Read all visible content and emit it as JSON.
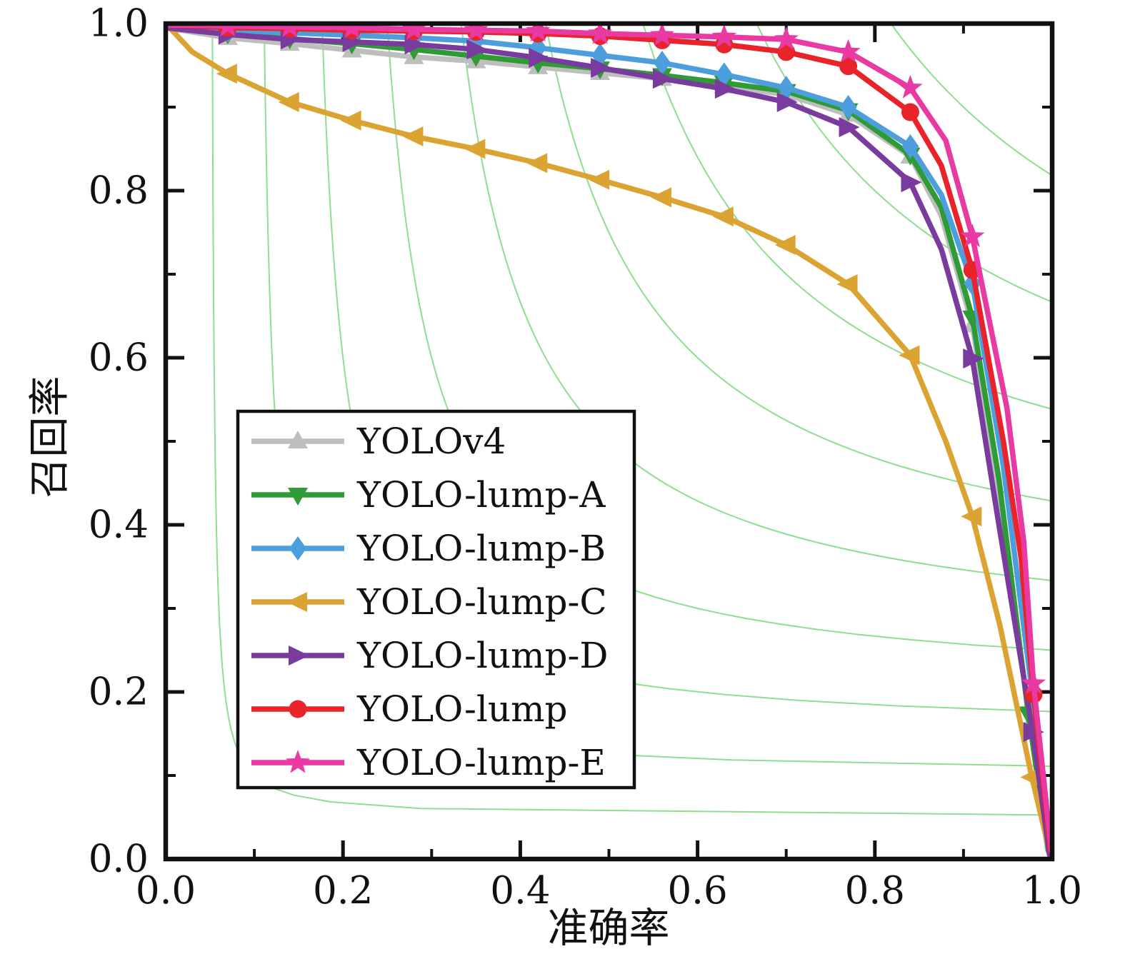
{
  "figure": {
    "background": "#ffffff",
    "axis_color": "#111111"
  },
  "chart_data": {
    "type": "line",
    "title": "",
    "xlabel": "准确率",
    "ylabel": "召回率",
    "xlim": [
      0,
      1
    ],
    "ylim": [
      0,
      1
    ],
    "grid": false,
    "x_ticks": {
      "values": [
        0,
        0.2,
        0.4,
        0.6,
        0.8,
        1.0
      ],
      "labels": [
        "0.0",
        "0.2",
        "0.4",
        "0.6",
        "0.8",
        "1.0"
      ],
      "minor": [
        0.1,
        0.3,
        0.5,
        0.7,
        0.9
      ]
    },
    "y_ticks": {
      "values": [
        0,
        0.2,
        0.4,
        0.6,
        0.8,
        1.0
      ],
      "labels": [
        "0.0",
        "0.2",
        "0.4",
        "0.6",
        "0.8",
        "1.0"
      ],
      "minor": [
        0.1,
        0.3,
        0.5,
        0.7,
        0.9
      ]
    },
    "f1_contours": {
      "levels": [
        0.1,
        0.2,
        0.3,
        0.4,
        0.5,
        0.6,
        0.7,
        0.8,
        0.9
      ],
      "color": "#8fdd8f"
    },
    "legend": {
      "position": "center-left",
      "border_color": "#111111",
      "background": "#ffffff"
    },
    "series": [
      {
        "name": "YOLOv4",
        "color": "#bebebe",
        "marker": "triangle-up",
        "points": [
          [
            0,
            0.995,
            0
          ],
          [
            0.035,
            0.989,
            0
          ],
          [
            0.07,
            0.983,
            1
          ],
          [
            0.14,
            0.976,
            1
          ],
          [
            0.21,
            0.968,
            1
          ],
          [
            0.28,
            0.96,
            1
          ],
          [
            0.35,
            0.955,
            1
          ],
          [
            0.42,
            0.948,
            1
          ],
          [
            0.49,
            0.941,
            1
          ],
          [
            0.56,
            0.934,
            1
          ],
          [
            0.63,
            0.925,
            1
          ],
          [
            0.7,
            0.915,
            1
          ],
          [
            0.77,
            0.891,
            1
          ],
          [
            0.84,
            0.841,
            1
          ],
          [
            0.875,
            0.77,
            0
          ],
          [
            0.91,
            0.639,
            1
          ],
          [
            0.94,
            0.44,
            0
          ],
          [
            0.975,
            0.162,
            1
          ],
          [
            0.995,
            0.01,
            0
          ]
        ]
      },
      {
        "name": "YOLO-lump-A",
        "color": "#2e9b37",
        "marker": "triangle-down",
        "points": [
          [
            0,
            0.996,
            0
          ],
          [
            0.035,
            0.992,
            0
          ],
          [
            0.07,
            0.988,
            1
          ],
          [
            0.14,
            0.982,
            1
          ],
          [
            0.21,
            0.976,
            1
          ],
          [
            0.28,
            0.969,
            1
          ],
          [
            0.35,
            0.961,
            1
          ],
          [
            0.42,
            0.953,
            1
          ],
          [
            0.49,
            0.946,
            1
          ],
          [
            0.56,
            0.938,
            1
          ],
          [
            0.63,
            0.929,
            1
          ],
          [
            0.7,
            0.919,
            1
          ],
          [
            0.77,
            0.896,
            1
          ],
          [
            0.84,
            0.843,
            1
          ],
          [
            0.875,
            0.78,
            0
          ],
          [
            0.91,
            0.648,
            1
          ],
          [
            0.94,
            0.455,
            0
          ],
          [
            0.973,
            0.174,
            1
          ],
          [
            0.996,
            0.01,
            0
          ]
        ]
      },
      {
        "name": "YOLO-lump-B",
        "color": "#4c9edd",
        "marker": "diamond",
        "points": [
          [
            0,
            0.997,
            0
          ],
          [
            0.035,
            0.995,
            0
          ],
          [
            0.07,
            0.992,
            1
          ],
          [
            0.14,
            0.989,
            1
          ],
          [
            0.21,
            0.986,
            1
          ],
          [
            0.28,
            0.983,
            1
          ],
          [
            0.35,
            0.979,
            1
          ],
          [
            0.42,
            0.971,
            1
          ],
          [
            0.49,
            0.962,
            1
          ],
          [
            0.56,
            0.953,
            1
          ],
          [
            0.63,
            0.939,
            1
          ],
          [
            0.7,
            0.923,
            1
          ],
          [
            0.77,
            0.9,
            1
          ],
          [
            0.84,
            0.853,
            1
          ],
          [
            0.875,
            0.795,
            0
          ],
          [
            0.91,
            0.689,
            1
          ],
          [
            0.945,
            0.47,
            0
          ],
          [
            0.978,
            0.195,
            1
          ],
          [
            0.998,
            0.01,
            0
          ]
        ]
      },
      {
        "name": "YOLO-lump-C",
        "color": "#dba432",
        "marker": "triangle-left",
        "points": [
          [
            0,
            1.0,
            0
          ],
          [
            0.03,
            0.966,
            0
          ],
          [
            0.07,
            0.94,
            1
          ],
          [
            0.14,
            0.906,
            1
          ],
          [
            0.21,
            0.884,
            1
          ],
          [
            0.28,
            0.865,
            1
          ],
          [
            0.35,
            0.85,
            1
          ],
          [
            0.42,
            0.833,
            1
          ],
          [
            0.49,
            0.813,
            1
          ],
          [
            0.56,
            0.792,
            1
          ],
          [
            0.63,
            0.769,
            1
          ],
          [
            0.7,
            0.735,
            1
          ],
          [
            0.77,
            0.688,
            1
          ],
          [
            0.84,
            0.603,
            1
          ],
          [
            0.88,
            0.5,
            0
          ],
          [
            0.91,
            0.41,
            1
          ],
          [
            0.941,
            0.28,
            0
          ],
          [
            0.977,
            0.098,
            1
          ],
          [
            0.998,
            0.005,
            0
          ]
        ]
      },
      {
        "name": "YOLO-lump-D",
        "color": "#7a3b9e",
        "marker": "triangle-right",
        "points": [
          [
            0,
            0.995,
            0
          ],
          [
            0.035,
            0.991,
            0
          ],
          [
            0.07,
            0.987,
            1
          ],
          [
            0.14,
            0.981,
            1
          ],
          [
            0.21,
            0.978,
            1
          ],
          [
            0.28,
            0.975,
            1
          ],
          [
            0.35,
            0.969,
            1
          ],
          [
            0.42,
            0.959,
            1
          ],
          [
            0.49,
            0.947,
            1
          ],
          [
            0.56,
            0.934,
            1
          ],
          [
            0.63,
            0.922,
            1
          ],
          [
            0.7,
            0.906,
            1
          ],
          [
            0.77,
            0.876,
            1
          ],
          [
            0.84,
            0.81,
            1
          ],
          [
            0.875,
            0.73,
            0
          ],
          [
            0.91,
            0.599,
            1
          ],
          [
            0.94,
            0.4,
            0
          ],
          [
            0.978,
            0.152,
            1
          ],
          [
            0.997,
            0.005,
            0
          ]
        ]
      },
      {
        "name": "YOLO-lump",
        "color": "#e82329",
        "marker": "circle",
        "points": [
          [
            0,
            0.998,
            0
          ],
          [
            0.035,
            0.997,
            0
          ],
          [
            0.07,
            0.995,
            1
          ],
          [
            0.14,
            0.994,
            1
          ],
          [
            0.21,
            0.992,
            1
          ],
          [
            0.28,
            0.991,
            1
          ],
          [
            0.35,
            0.99,
            1
          ],
          [
            0.42,
            0.988,
            1
          ],
          [
            0.49,
            0.985,
            1
          ],
          [
            0.56,
            0.98,
            1
          ],
          [
            0.63,
            0.975,
            1
          ],
          [
            0.7,
            0.966,
            1
          ],
          [
            0.77,
            0.949,
            1
          ],
          [
            0.84,
            0.894,
            1
          ],
          [
            0.875,
            0.83,
            0
          ],
          [
            0.91,
            0.705,
            1
          ],
          [
            0.945,
            0.5,
            0
          ],
          [
            0.965,
            0.36,
            0
          ],
          [
            0.979,
            0.197,
            1
          ],
          [
            0.998,
            0.01,
            0
          ]
        ]
      },
      {
        "name": "YOLO-lump-E",
        "color": "#e83aa2",
        "marker": "star",
        "points": [
          [
            0,
            0.998,
            0
          ],
          [
            0.035,
            0.998,
            0
          ],
          [
            0.07,
            0.997,
            1
          ],
          [
            0.14,
            0.996,
            1
          ],
          [
            0.21,
            0.995,
            1
          ],
          [
            0.28,
            0.993,
            1
          ],
          [
            0.35,
            0.992,
            1
          ],
          [
            0.42,
            0.991,
            1
          ],
          [
            0.49,
            0.988,
            1
          ],
          [
            0.56,
            0.986,
            1
          ],
          [
            0.63,
            0.984,
            1
          ],
          [
            0.7,
            0.981,
            1
          ],
          [
            0.77,
            0.966,
            1
          ],
          [
            0.84,
            0.923,
            1
          ],
          [
            0.88,
            0.86,
            0
          ],
          [
            0.91,
            0.745,
            1
          ],
          [
            0.949,
            0.54,
            0
          ],
          [
            0.968,
            0.38,
            0
          ],
          [
            0.979,
            0.21,
            1
          ],
          [
            0.999,
            0.01,
            0
          ]
        ]
      }
    ]
  }
}
